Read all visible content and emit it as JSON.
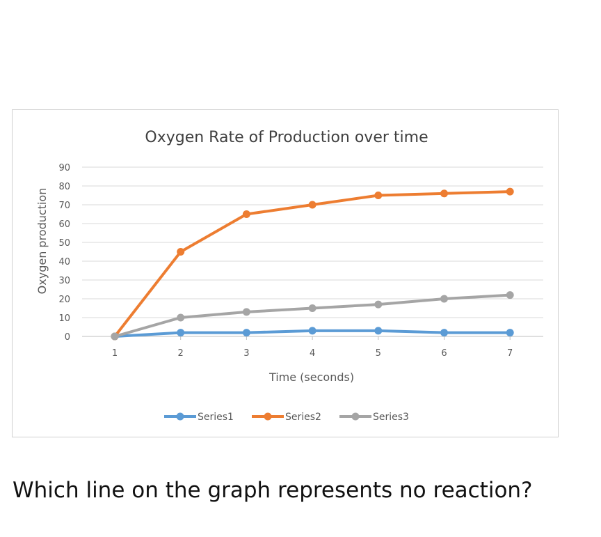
{
  "chart_data": {
    "type": "line",
    "title": "Oxygen Rate of Production over time",
    "xlabel": "Time  (seconds)",
    "ylabel": "Oxygen production",
    "categories": [
      "1",
      "2",
      "3",
      "4",
      "5",
      "6",
      "7"
    ],
    "ylim": [
      0,
      90
    ],
    "yticks": [
      "0",
      "10",
      "20",
      "30",
      "40",
      "50",
      "60",
      "70",
      "80",
      "90"
    ],
    "grid": true,
    "legend_position": "bottom",
    "series": [
      {
        "name": "Series1",
        "color": "#5b9bd5",
        "values": [
          0,
          2,
          2,
          3,
          3,
          2,
          2
        ]
      },
      {
        "name": "Series2",
        "color": "#ed7d31",
        "values": [
          0,
          45,
          65,
          70,
          75,
          76,
          77
        ]
      },
      {
        "name": "Series3",
        "color": "#a5a5a5",
        "values": [
          0,
          10,
          13,
          15,
          17,
          20,
          22
        ]
      }
    ]
  },
  "question": "Which line on the graph represents no reaction?"
}
